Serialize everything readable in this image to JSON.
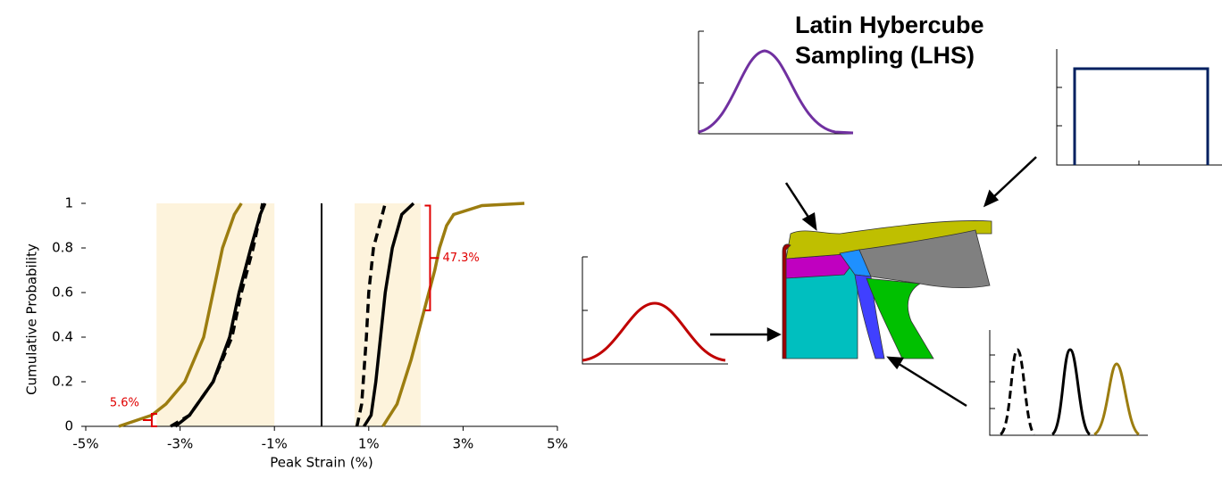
{
  "chart_data": {
    "type": "line",
    "xlabel": "Peak Strain (%)",
    "ylabel": "Cumulative Probability",
    "xlim": [
      -5,
      5
    ],
    "ylim": [
      0,
      1
    ],
    "xticks": [
      {
        "value": -5,
        "label": "-5%"
      },
      {
        "value": -3,
        "label": "-3%"
      },
      {
        "value": -1,
        "label": "-1%"
      },
      {
        "value": 1,
        "label": "1%"
      },
      {
        "value": 3,
        "label": "3%"
      },
      {
        "value": 5,
        "label": "5%"
      }
    ],
    "yticks": [
      0,
      0.2,
      0.4,
      0.6,
      0.8,
      1
    ],
    "grid": false,
    "shaded_ranges": [
      [
        -3.5,
        -1
      ],
      [
        0.7,
        2.1
      ]
    ],
    "shade_color": "#fdf3dc",
    "vline": 0,
    "series": [
      {
        "color": "#9c7d10",
        "dashed": false,
        "x": [
          -4.3,
          -3.6,
          -3.3,
          -2.9,
          -2.5,
          -2.3,
          -2.1,
          -1.85,
          -1.7
        ],
        "values": [
          0,
          0.05,
          0.1,
          0.2,
          0.4,
          0.6,
          0.8,
          0.95,
          1
        ]
      },
      {
        "color": "#000000",
        "dashed": true,
        "x": [
          -3.2,
          -2.8,
          -2.3,
          -1.9,
          -1.7,
          -1.45,
          -1.25
        ],
        "values": [
          0,
          0.05,
          0.2,
          0.4,
          0.6,
          0.8,
          1
        ]
      },
      {
        "color": "#000000",
        "dashed": false,
        "x": [
          -3.1,
          -2.8,
          -2.3,
          -1.95,
          -1.75,
          -1.5,
          -1.3,
          -1.2
        ],
        "values": [
          0,
          0.05,
          0.2,
          0.4,
          0.6,
          0.8,
          0.95,
          1
        ]
      },
      {
        "color": "#000000",
        "dashed": true,
        "x": [
          0.75,
          0.85,
          0.95,
          1.0,
          1.1,
          1.35
        ],
        "values": [
          0,
          0.1,
          0.4,
          0.6,
          0.8,
          1
        ]
      },
      {
        "color": "#000000",
        "dashed": false,
        "x": [
          0.9,
          1.05,
          1.15,
          1.25,
          1.35,
          1.5,
          1.7,
          1.95
        ],
        "values": [
          0,
          0.05,
          0.2,
          0.4,
          0.6,
          0.8,
          0.95,
          1
        ]
      },
      {
        "color": "#9c7d10",
        "dashed": false,
        "x": [
          1.3,
          1.6,
          1.9,
          2.15,
          2.4,
          2.5,
          2.65,
          2.8,
          3.4,
          4.3
        ],
        "values": [
          0,
          0.1,
          0.3,
          0.5,
          0.7,
          0.8,
          0.9,
          0.95,
          0.99,
          1
        ]
      }
    ],
    "annotations": [
      {
        "label": "5.6%",
        "x": -3.6,
        "y0": 0,
        "y1": 0.056,
        "color": "#e00000"
      },
      {
        "label": "47.3%",
        "x": 2.3,
        "y0": 0.52,
        "y1": 0.99,
        "color": "#e00000"
      }
    ]
  },
  "diagram": {
    "title": [
      "Latin Hybercube",
      "Sampling (LHS)"
    ]
  }
}
